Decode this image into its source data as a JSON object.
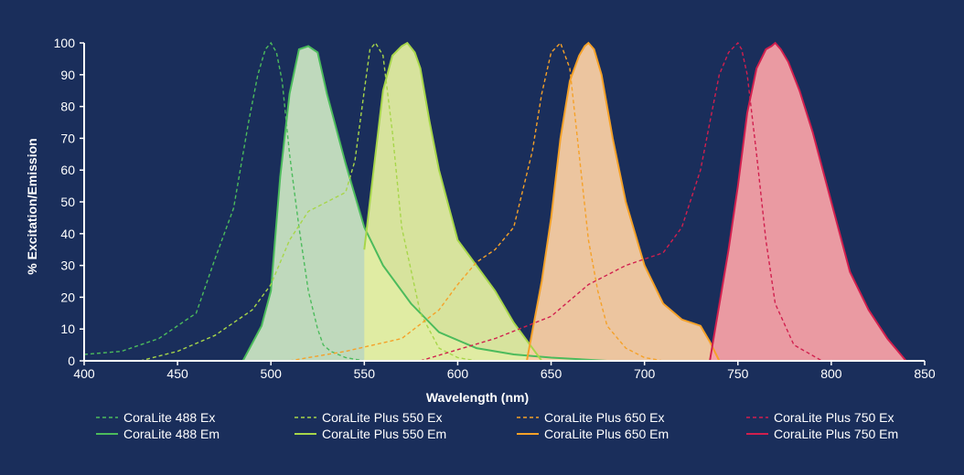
{
  "page": {
    "background": "#1a2e5b",
    "text_color": "#ffffff",
    "axis_color": "#ffffff"
  },
  "chart_data": {
    "type": "line",
    "title": "",
    "xlabel": "Wavelength (nm)",
    "ylabel": "% Excitation/Emission",
    "xlim": [
      400,
      850
    ],
    "ylim": [
      0,
      100
    ],
    "xticks": [
      400,
      450,
      500,
      550,
      600,
      650,
      700,
      750,
      800,
      850
    ],
    "yticks": [
      0,
      10,
      20,
      30,
      40,
      50,
      60,
      70,
      80,
      90,
      100
    ],
    "grid": false,
    "legend_position": "bottom",
    "series": [
      {
        "name": "CoraLite 488 Ex",
        "kind": "ex",
        "color": "#4cbb5c",
        "x": [
          400,
          420,
          440,
          460,
          470,
          480,
          488,
          493,
          497,
          500,
          503,
          506,
          510,
          515,
          520,
          525,
          528,
          532,
          540,
          550
        ],
        "y": [
          2,
          3,
          7,
          15,
          32,
          48,
          75,
          90,
          98,
          100,
          97,
          88,
          65,
          42,
          22,
          10,
          5,
          3,
          1,
          0
        ]
      },
      {
        "name": "CoraLite 488 Em",
        "kind": "em",
        "color": "#4cbb5c",
        "fill": "#c8e3c2",
        "x": [
          485,
          495,
          500,
          505,
          510,
          515,
          520,
          525,
          530,
          540,
          550,
          560,
          575,
          590,
          610,
          630,
          650,
          680
        ],
        "y": [
          0,
          11,
          22,
          58,
          84,
          98,
          99,
          97,
          84,
          62,
          42,
          30,
          18,
          9,
          4,
          2,
          1,
          0
        ]
      },
      {
        "name": "CoraLite Plus 550 Ex",
        "kind": "ex",
        "color": "#a7d64a",
        "x": [
          430,
          450,
          470,
          490,
          500,
          510,
          520,
          530,
          540,
          545,
          550,
          553,
          556,
          560,
          565,
          570,
          580,
          590,
          600,
          610
        ],
        "y": [
          0,
          3,
          8,
          16,
          24,
          38,
          47,
          50,
          53,
          63,
          85,
          98,
          100,
          96,
          72,
          42,
          15,
          4,
          1,
          0
        ]
      },
      {
        "name": "CoraLite Plus 550 Em",
        "kind": "em",
        "color": "#a7d64a",
        "fill": "#e2eda1",
        "x": [
          550,
          555,
          560,
          565,
          570,
          573,
          577,
          580,
          585,
          590,
          600,
          610,
          620,
          630,
          645
        ],
        "y": [
          35,
          60,
          85,
          96,
          99,
          100,
          97,
          92,
          75,
          60,
          38,
          30,
          22,
          12,
          0
        ]
      },
      {
        "name": "CoraLite Plus 650 Ex",
        "kind": "ex",
        "color": "#f5a128",
        "x": [
          510,
          540,
          570,
          590,
          600,
          610,
          620,
          630,
          640,
          645,
          650,
          655,
          660,
          665,
          670,
          675,
          680,
          690,
          700,
          710
        ],
        "y": [
          0,
          3,
          7,
          16,
          24,
          31,
          35,
          42,
          66,
          84,
          97,
          100,
          92,
          65,
          38,
          22,
          11,
          4,
          1,
          0
        ]
      },
      {
        "name": "CoraLite Plus 650 Em",
        "kind": "em",
        "color": "#f5a128",
        "fill": "#f8cda3",
        "x": [
          637,
          645,
          650,
          655,
          660,
          665,
          668,
          670,
          673,
          677,
          683,
          690,
          700,
          710,
          720,
          730,
          735,
          740
        ],
        "y": [
          0,
          25,
          45,
          70,
          88,
          96,
          99,
          100,
          98,
          90,
          70,
          50,
          30,
          18,
          13,
          11,
          6,
          0
        ]
      },
      {
        "name": "CoraLite Plus 750 Ex",
        "kind": "ex",
        "color": "#d11f4e",
        "x": [
          580,
          620,
          650,
          670,
          690,
          700,
          710,
          720,
          730,
          735,
          740,
          745,
          750,
          752,
          755,
          760,
          765,
          770,
          780,
          795
        ],
        "y": [
          0,
          7,
          14,
          24,
          30,
          32,
          34,
          42,
          60,
          75,
          90,
          97,
          100,
          98,
          90,
          65,
          38,
          18,
          5,
          0
        ]
      },
      {
        "name": "CoraLite Plus 750 Em",
        "kind": "em",
        "color": "#d11f4e",
        "fill": "#f5a0a6",
        "x": [
          735,
          745,
          750,
          755,
          760,
          765,
          768,
          770,
          773,
          777,
          783,
          790,
          800,
          810,
          820,
          830,
          840
        ],
        "y": [
          0,
          35,
          55,
          78,
          92,
          98,
          99,
          100,
          98,
          94,
          85,
          72,
          50,
          28,
          16,
          7,
          0
        ]
      }
    ]
  }
}
